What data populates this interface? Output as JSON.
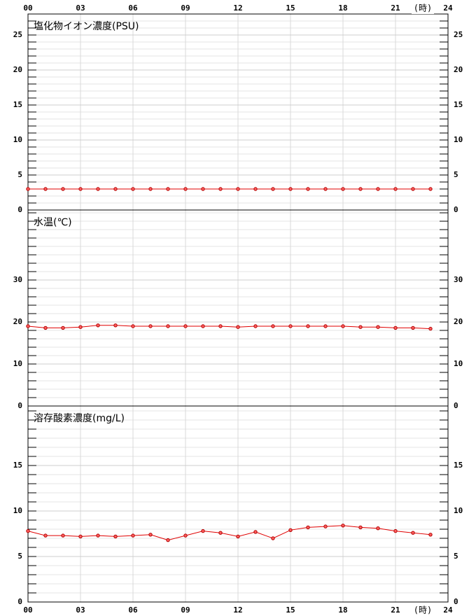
{
  "chart_data": [
    {
      "type": "line",
      "title": "塩化物イオン濃度(PSU)",
      "color": "#e00000",
      "x": [
        0,
        1,
        2,
        3,
        4,
        5,
        6,
        7,
        8,
        9,
        10,
        11,
        12,
        13,
        14,
        15,
        16,
        17,
        18,
        19,
        20,
        21,
        22,
        23
      ],
      "values": [
        3,
        3,
        3,
        3,
        3,
        3,
        3,
        3,
        3,
        3,
        3,
        3,
        3,
        3,
        3,
        3,
        3,
        3,
        3,
        3,
        3,
        3,
        3,
        3
      ],
      "xlim": [
        0,
        24
      ],
      "xticks": [
        {
          "value": 0,
          "label": "00"
        },
        {
          "value": 3,
          "label": "03"
        },
        {
          "value": 6,
          "label": "06"
        },
        {
          "value": 9,
          "label": "09"
        },
        {
          "value": 12,
          "label": "12"
        },
        {
          "value": 15,
          "label": "15"
        },
        {
          "value": 18,
          "label": "18"
        },
        {
          "value": 21,
          "label": "21"
        },
        {
          "value": 24,
          "label": "24"
        }
      ],
      "x_label": "(時)",
      "ylim": [
        0,
        28
      ],
      "yticks": [
        0,
        5,
        10,
        15,
        20,
        25
      ],
      "minor_yticks": [
        1,
        2,
        3,
        4,
        6,
        7,
        8,
        9,
        11,
        12,
        13,
        14,
        16,
        17,
        18,
        19,
        21,
        22,
        23,
        24,
        26,
        27
      ]
    },
    {
      "type": "line",
      "title": "水温(℃)",
      "color": "#e00000",
      "x": [
        0,
        1,
        2,
        3,
        4,
        5,
        6,
        7,
        8,
        9,
        10,
        11,
        12,
        13,
        14,
        15,
        16,
        17,
        18,
        19,
        20,
        21,
        22,
        23
      ],
      "values": [
        19.0,
        18.6,
        18.6,
        18.8,
        19.2,
        19.2,
        19.0,
        19.0,
        19.0,
        19.0,
        19.0,
        19.0,
        18.8,
        19.0,
        19.0,
        19.0,
        19.0,
        19.0,
        19.0,
        18.8,
        18.8,
        18.6,
        18.6,
        18.4
      ],
      "xlim": [
        0,
        24
      ],
      "xticks": [
        {
          "value": 0,
          "label": "00"
        },
        {
          "value": 3,
          "label": "03"
        },
        {
          "value": 6,
          "label": "06"
        },
        {
          "value": 9,
          "label": "09"
        },
        {
          "value": 12,
          "label": "12"
        },
        {
          "value": 15,
          "label": "15"
        },
        {
          "value": 18,
          "label": "18"
        },
        {
          "value": 21,
          "label": "21"
        },
        {
          "value": 24,
          "label": "24"
        }
      ],
      "ylim": [
        0,
        46.67
      ],
      "yticks": [
        0,
        10,
        20,
        30
      ],
      "minor_yticks": [
        2,
        4,
        6,
        8,
        12,
        14,
        16,
        18,
        22,
        24,
        26,
        28,
        32,
        34,
        36,
        38,
        40,
        42,
        44,
        46
      ]
    },
    {
      "type": "line",
      "title": "溶存酸素濃度(mg/L)",
      "color": "#e00000",
      "x": [
        0,
        1,
        2,
        3,
        4,
        5,
        6,
        7,
        8,
        9,
        10,
        11,
        12,
        13,
        14,
        15,
        16,
        17,
        18,
        19,
        20,
        21,
        22,
        23
      ],
      "values": [
        7.8,
        7.3,
        7.3,
        7.2,
        7.3,
        7.2,
        7.3,
        7.4,
        6.8,
        7.3,
        7.8,
        7.6,
        7.2,
        7.7,
        7.0,
        7.9,
        8.2,
        8.3,
        8.4,
        8.2,
        8.1,
        7.8,
        7.6,
        7.4
      ],
      "xlim": [
        0,
        24
      ],
      "xticks": [
        {
          "value": 0,
          "label": "00"
        },
        {
          "value": 3,
          "label": "03"
        },
        {
          "value": 6,
          "label": "06"
        },
        {
          "value": 9,
          "label": "09"
        },
        {
          "value": 12,
          "label": "12"
        },
        {
          "value": 15,
          "label": "15"
        },
        {
          "value": 18,
          "label": "18"
        },
        {
          "value": 21,
          "label": "21"
        },
        {
          "value": 24,
          "label": "24"
        }
      ],
      "x_label": "(時)",
      "ylim": [
        0,
        21.54
      ],
      "yticks": [
        0,
        5,
        10,
        15
      ],
      "minor_yticks": [
        1,
        2,
        3,
        4,
        6,
        7,
        8,
        9,
        11,
        12,
        13,
        14,
        16,
        17,
        18,
        19,
        20,
        21
      ]
    }
  ]
}
